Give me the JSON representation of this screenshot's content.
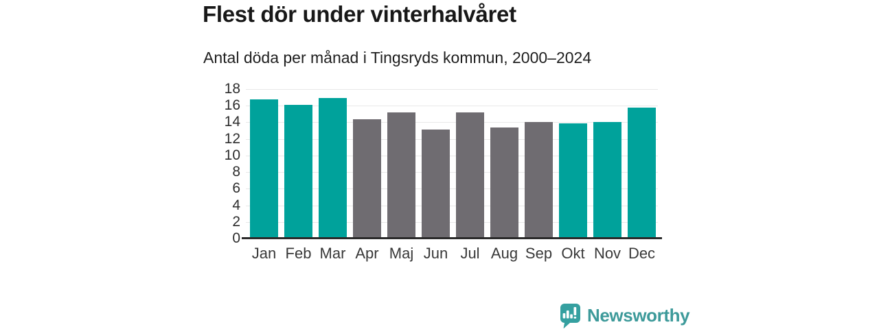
{
  "chart_data": {
    "type": "bar",
    "title": "Flest dör under vinterhalvåret",
    "subtitle": "Antal döda per månad i Tingsryds kommun, 2000–2024",
    "categories": [
      "Jan",
      "Feb",
      "Mar",
      "Apr",
      "Maj",
      "Jun",
      "Jul",
      "Aug",
      "Sep",
      "Okt",
      "Nov",
      "Dec"
    ],
    "values": [
      16.8,
      16.1,
      16.9,
      14.4,
      15.2,
      13.1,
      15.2,
      13.4,
      14.0,
      13.9,
      14.0,
      15.8
    ],
    "bar_colors": [
      "#00a29b",
      "#00a29b",
      "#00a29b",
      "#6f6c71",
      "#6f6c71",
      "#6f6c71",
      "#6f6c71",
      "#6f6c71",
      "#6f6c71",
      "#00a29b",
      "#00a29b",
      "#00a29b"
    ],
    "xlabel": "",
    "ylabel": "",
    "ylim": [
      0,
      18
    ],
    "yticks": [
      0,
      2,
      4,
      6,
      8,
      10,
      12,
      14,
      16,
      18
    ],
    "grid": true,
    "legend": "none"
  },
  "colors": {
    "winter_bar": "#00a29b",
    "summer_bar": "#6f6c71",
    "gridline": "#e8e8e8",
    "axis_line": "#2b2b2b",
    "title_text": "#181818",
    "label_text": "#2d2d2d"
  },
  "branding": {
    "name": "Newsworthy",
    "icon": "bar-chart-speech-bubble-icon",
    "wordmark_color": "#3d9a9a",
    "icon_color": "#35a0a0"
  }
}
